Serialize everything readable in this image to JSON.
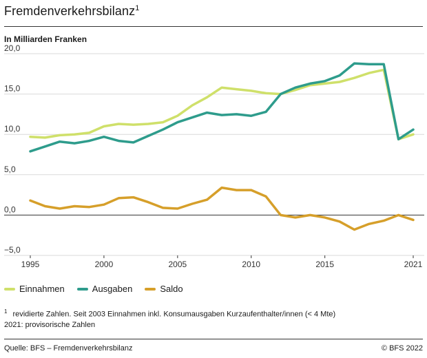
{
  "header": {
    "title": "Fremdenverkehrsbilanz",
    "title_sup": "1",
    "subtitle": "In Milliarden Franken"
  },
  "chart_data": {
    "type": "line",
    "title": "Fremdenverkehrsbilanz",
    "ylabel": "In Milliarden Franken",
    "ylim": [
      -5,
      20
    ],
    "yticks": [
      "20,0",
      "15,0",
      "10,0",
      "5,0",
      "0,0",
      "−5,0"
    ],
    "ytick_values": [
      20,
      15,
      10,
      5,
      0,
      -5
    ],
    "xticks": [
      "1995",
      "2000",
      "2005",
      "2010",
      "2015",
      "2021"
    ],
    "xtick_values": [
      1995,
      2000,
      2005,
      2010,
      2015,
      2021
    ],
    "x": [
      1995,
      1996,
      1997,
      1998,
      1999,
      2000,
      2001,
      2002,
      2003,
      2004,
      2005,
      2006,
      2007,
      2008,
      2009,
      2010,
      2011,
      2012,
      2013,
      2014,
      2015,
      2016,
      2017,
      2018,
      2019,
      2020,
      2021
    ],
    "series": [
      {
        "name": "Einnahmen",
        "color": "#cfe06a",
        "values": [
          9.7,
          9.6,
          9.9,
          10.0,
          10.2,
          11.0,
          11.3,
          11.2,
          11.3,
          11.5,
          12.3,
          13.6,
          14.6,
          15.8,
          15.6,
          15.4,
          15.1,
          15.0,
          15.5,
          16.1,
          16.3,
          16.5,
          17.0,
          17.6,
          18.0,
          9.4,
          10.0
        ]
      },
      {
        "name": "Ausgaben",
        "color": "#2e9c8c",
        "values": [
          7.9,
          8.5,
          9.1,
          8.9,
          9.2,
          9.7,
          9.2,
          9.0,
          9.8,
          10.6,
          11.5,
          12.1,
          12.7,
          12.4,
          12.5,
          12.3,
          12.8,
          15.0,
          15.8,
          16.3,
          16.6,
          17.3,
          18.8,
          18.7,
          18.7,
          9.4,
          10.6
        ]
      },
      {
        "name": "Saldo",
        "color": "#d69f2a",
        "values": [
          1.8,
          1.1,
          0.8,
          1.1,
          1.0,
          1.3,
          2.1,
          2.2,
          1.6,
          0.9,
          0.8,
          1.4,
          1.9,
          3.4,
          3.1,
          3.1,
          2.3,
          0.0,
          -0.3,
          0.0,
          -0.3,
          -0.8,
          -1.8,
          -1.1,
          -0.7,
          0.0,
          -0.6
        ]
      }
    ],
    "grid": "horizontal",
    "legend_position": "bottom-left"
  },
  "footnote": {
    "marker": "1",
    "line1": "revidierte Zahlen. Seit 2003 Einnahmen inkl. Konsumausgaben Kurzaufenthalter/innen (< 4 Mte)",
    "line2": "2021: provisorische Zahlen"
  },
  "footer": {
    "source": "Quelle: BFS – Fremdenverkehrsbilanz",
    "copyright": "© BFS 2022"
  }
}
